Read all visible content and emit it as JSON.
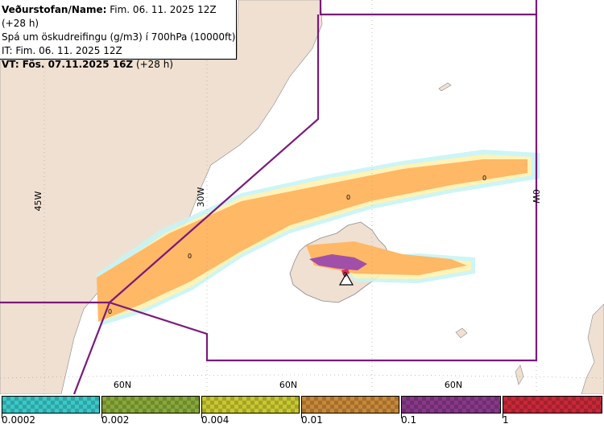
{
  "header": {
    "line1_bold": "Veðurstofan/Name:",
    "line1_rest": " Fim. 06. 11. 2025 12Z (+28 h)",
    "line2": "Spá um öskudreifingu (g/m3) í 700hPa (10000ft)",
    "line3": "IT: Fim. 06. 11. 2025 12Z",
    "line4_bold": "VT: Fös. 07.11.2025 16Z",
    "line4_rest": " (+28 h)"
  },
  "map": {
    "grid_labels": {
      "lon_45w": "45W",
      "lon_30w": "30W",
      "lon_0w": "0W",
      "lat_60n_a": "60N",
      "lat_60n_b": "60N",
      "lat_60n_c": "60N"
    },
    "contour_labels": [
      "0",
      "0",
      "0",
      "0",
      "0"
    ],
    "volcano_marker": "volcano-triangle",
    "colors": {
      "land": "#f0e0d2",
      "sea": "#ffffff",
      "boundary": "#7a1a7a",
      "plume_orange": "#ffb866",
      "plume_yellow": "#fff0a0",
      "plume_cyan": "#a8f0f0",
      "plume_purple": "#a050a8"
    }
  },
  "legend": {
    "ticks": [
      "0.0002",
      "0.002",
      "0.004",
      "0.01",
      "0.1",
      "1"
    ],
    "bins": [
      {
        "name": "cyan",
        "color": "#3ac8c8"
      },
      {
        "name": "olive",
        "color": "#88a838"
      },
      {
        "name": "yellow",
        "color": "#c8c830"
      },
      {
        "name": "orange",
        "color": "#c88838"
      },
      {
        "name": "purple",
        "color": "#883888"
      },
      {
        "name": "red",
        "color": "#c82838"
      }
    ]
  }
}
